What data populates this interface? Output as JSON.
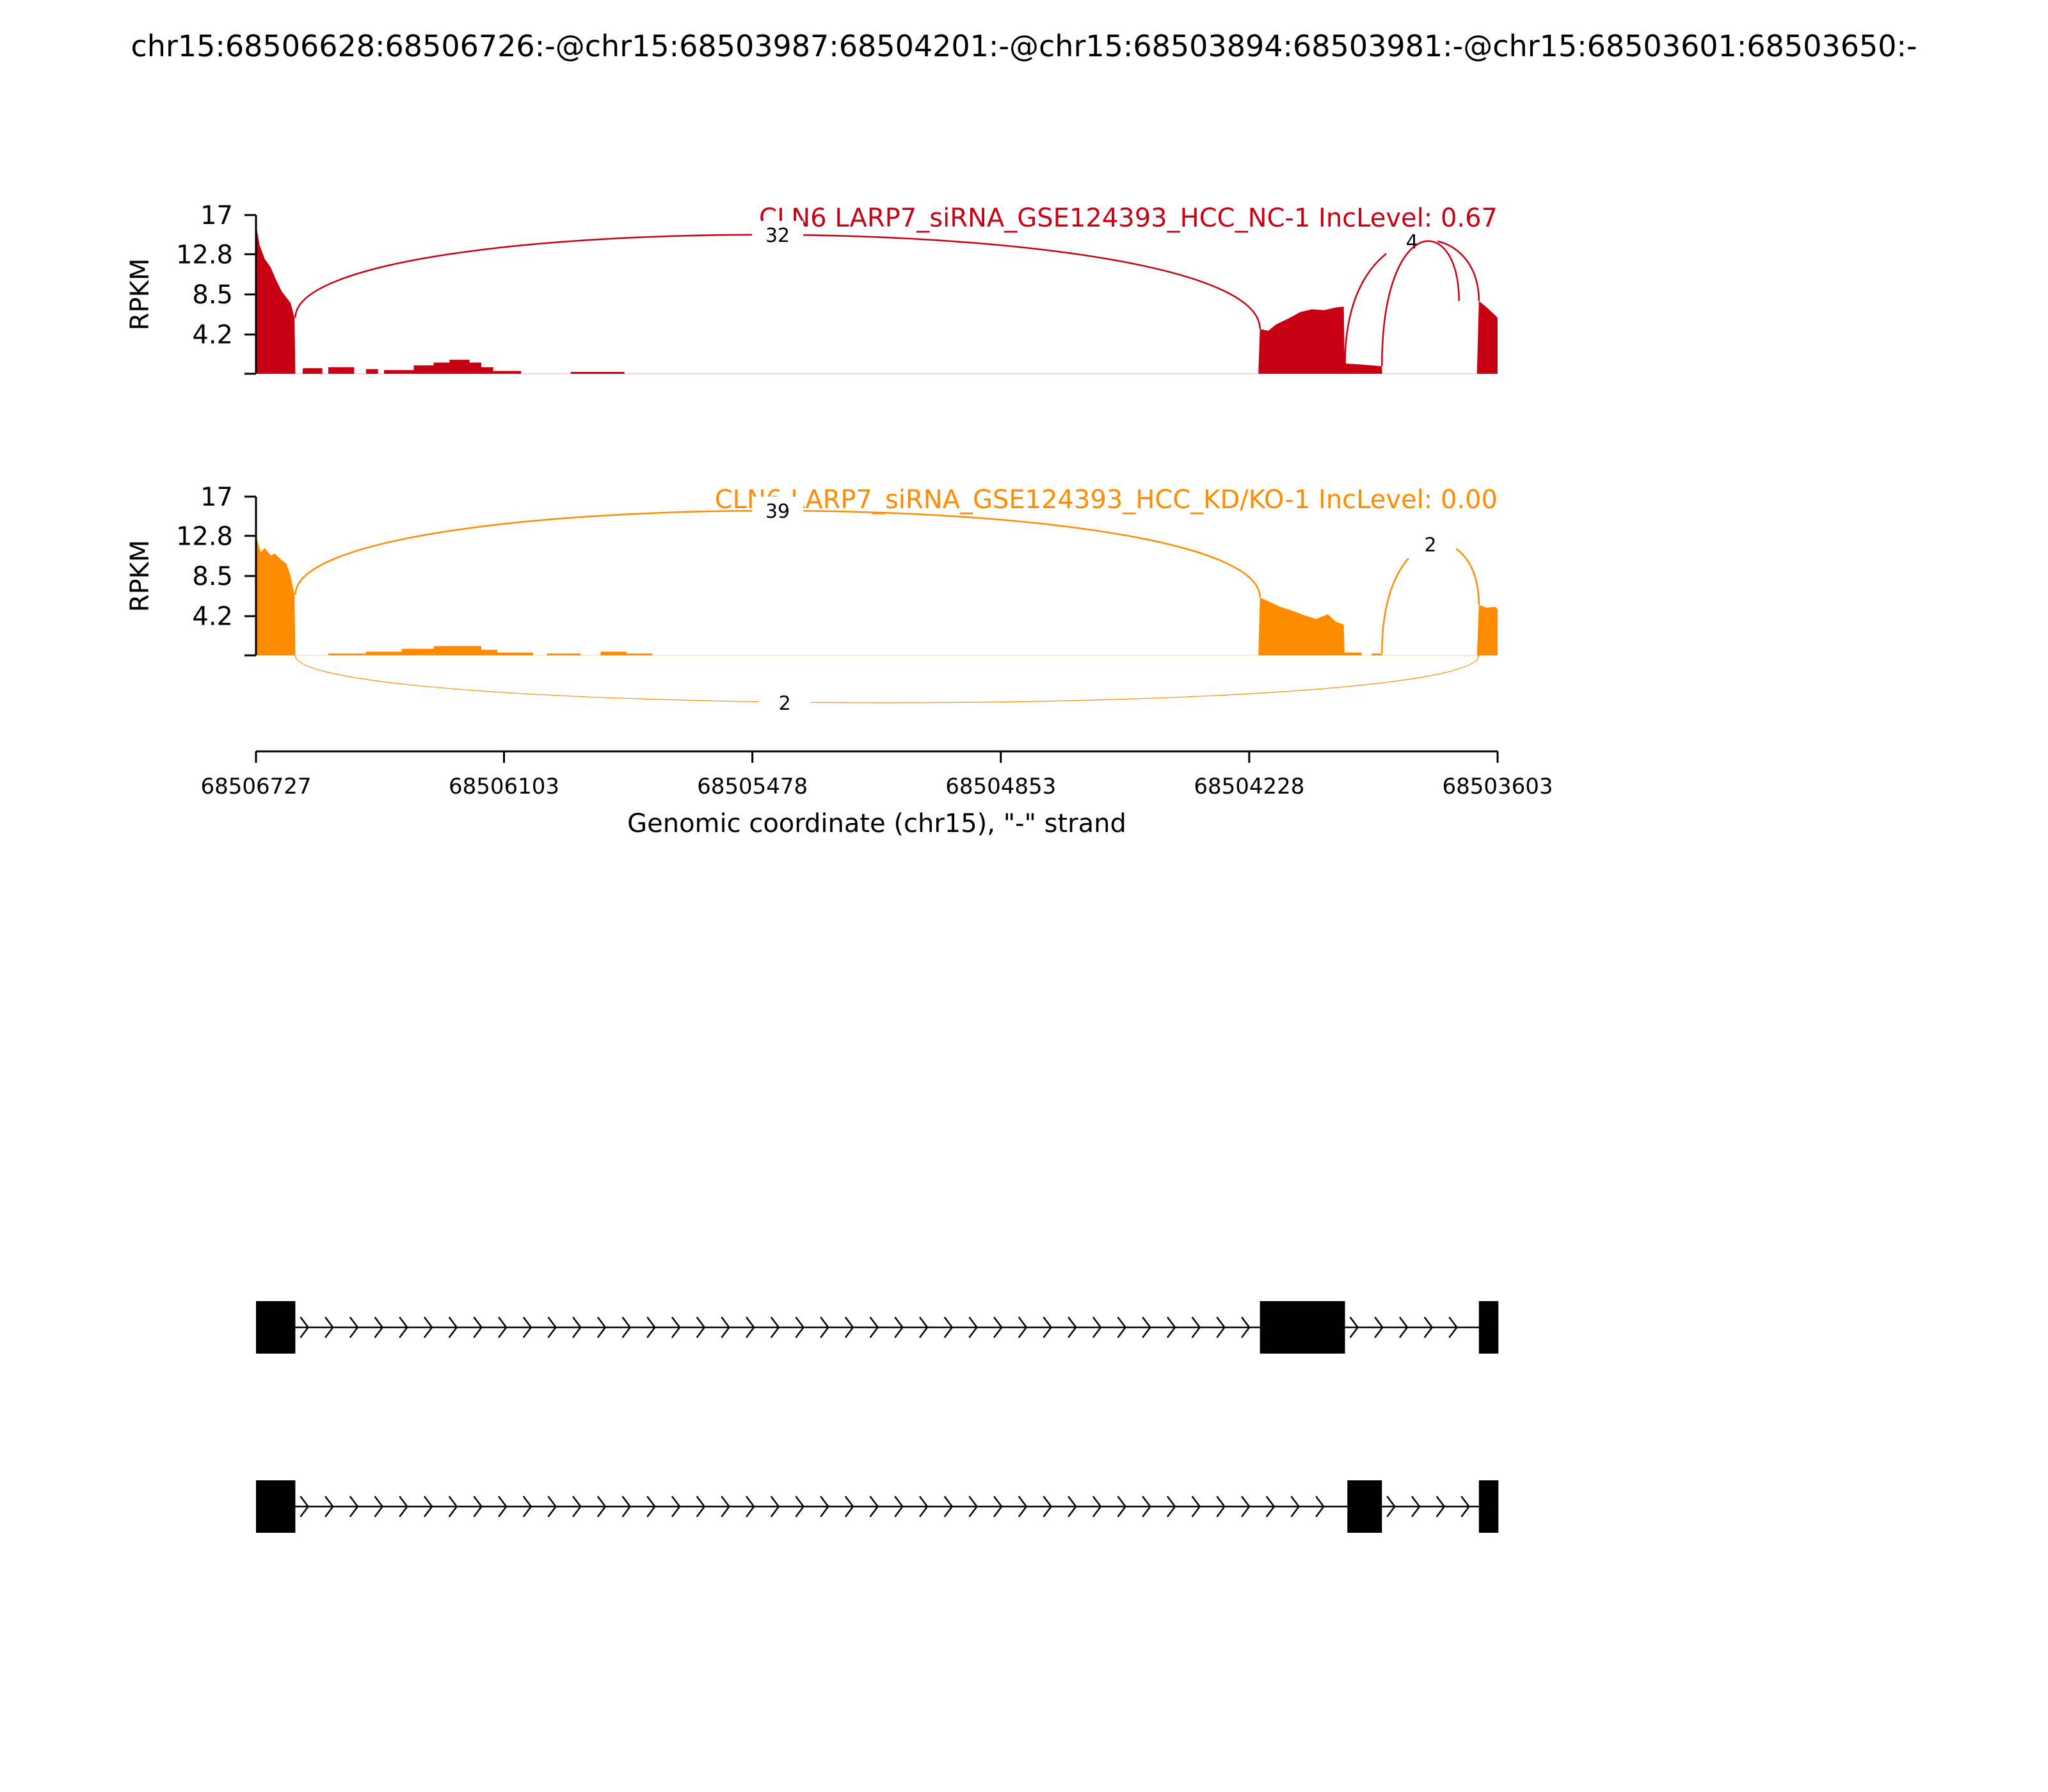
{
  "chart_data": {
    "type": "sashimi",
    "title": "chr15:68506628:68506726:-@chr15:68503987:68504201:-@chr15:68503894:68503981:-@chr15:68503601:68503650:-",
    "xlabel": "Genomic coordinate (chr15), \"-\" strand",
    "x_direction": "descending",
    "xlim": [
      68506727,
      68503603
    ],
    "xticks": [
      "68506727",
      "68506103",
      "68505478",
      "68504853",
      "68504228",
      "68503603"
    ],
    "tracks": [
      {
        "name": "CLN6 LARP7_siRNA_GSE124393_HCC_NC-1 IncLevel: 0.67",
        "color": "#c80014",
        "ylabel": "RPKM",
        "ylim": [
          0,
          17
        ],
        "yticks": [
          "17",
          "12.8",
          "8.5",
          "4.2"
        ],
        "coverage": [
          [
            68506727,
            16.0
          ],
          [
            68506718,
            13.8
          ],
          [
            68506705,
            12.3
          ],
          [
            68506690,
            11.4
          ],
          [
            68506678,
            10.2
          ],
          [
            68506662,
            8.8
          ],
          [
            68506640,
            7.6
          ],
          [
            68506630,
            6.0
          ],
          [
            68506628,
            0.0
          ],
          [
            68506610,
            0.0
          ],
          [
            68506609,
            0.6
          ],
          [
            68506560,
            0.6
          ],
          [
            68506560,
            0.0
          ],
          [
            68506545,
            0.0
          ],
          [
            68506545,
            0.7
          ],
          [
            68506480,
            0.7
          ],
          [
            68506480,
            0.0
          ],
          [
            68506450,
            0.0
          ],
          [
            68506450,
            0.5
          ],
          [
            68506420,
            0.5
          ],
          [
            68506420,
            0.0
          ],
          [
            68506405,
            0.0
          ],
          [
            68506405,
            0.4
          ],
          [
            68506330,
            0.4
          ],
          [
            68506330,
            0.9
          ],
          [
            68506280,
            0.9
          ],
          [
            68506280,
            1.2
          ],
          [
            68506240,
            1.2
          ],
          [
            68506240,
            1.5
          ],
          [
            68506190,
            1.5
          ],
          [
            68506190,
            1.2
          ],
          [
            68506160,
            1.2
          ],
          [
            68506160,
            0.7
          ],
          [
            68506130,
            0.7
          ],
          [
            68506130,
            0.3
          ],
          [
            68506060,
            0.3
          ],
          [
            68506060,
            0.0
          ],
          [
            68505935,
            0.0
          ],
          [
            68505935,
            0.2
          ],
          [
            68505800,
            0.2
          ],
          [
            68505800,
            0.0
          ],
          [
            68504205,
            0.0
          ],
          [
            68504201,
            4.8
          ],
          [
            68504180,
            4.6
          ],
          [
            68504160,
            5.3
          ],
          [
            68504130,
            5.9
          ],
          [
            68504100,
            6.6
          ],
          [
            68504070,
            6.9
          ],
          [
            68504040,
            6.8
          ],
          [
            68504010,
            7.1
          ],
          [
            68503990,
            7.2
          ],
          [
            68503988,
            1.1
          ],
          [
            68503950,
            1.0
          ],
          [
            68503920,
            0.9
          ],
          [
            68503895,
            0.8
          ],
          [
            68503893,
            0.0
          ],
          [
            68503655,
            0.0
          ],
          [
            68503650,
            7.8
          ],
          [
            68503630,
            7.1
          ],
          [
            68503610,
            6.3
          ],
          [
            68503603,
            6.0
          ]
        ],
        "junctions": [
          {
            "label": "32",
            "from": 68506628,
            "to": 68504201,
            "side": "above"
          },
          {
            "label": "4",
            "from": 68503987,
            "to": 68503650,
            "side": "above"
          },
          {
            "label": "",
            "from": 68503894,
            "to": 68503700,
            "side": "above"
          }
        ]
      },
      {
        "name": "CLN6 LARP7_siRNA_GSE124393_HCC_KD/KO-1 IncLevel: 0.00",
        "color": "#ff8c00",
        "ylabel": "RPKM",
        "ylim": [
          0,
          17
        ],
        "yticks": [
          "17",
          "12.8",
          "8.5",
          "4.2"
        ],
        "coverage": [
          [
            68506727,
            12.8
          ],
          [
            68506715,
            11.0
          ],
          [
            68506705,
            11.5
          ],
          [
            68506690,
            10.7
          ],
          [
            68506680,
            10.9
          ],
          [
            68506665,
            10.3
          ],
          [
            68506650,
            9.8
          ],
          [
            68506640,
            8.5
          ],
          [
            68506630,
            6.5
          ],
          [
            68506628,
            0.0
          ],
          [
            68506545,
            0.0
          ],
          [
            68506545,
            0.2
          ],
          [
            68506450,
            0.2
          ],
          [
            68506450,
            0.4
          ],
          [
            68506360,
            0.4
          ],
          [
            68506360,
            0.7
          ],
          [
            68506280,
            0.7
          ],
          [
            68506280,
            1.0
          ],
          [
            68506160,
            1.0
          ],
          [
            68506160,
            0.6
          ],
          [
            68506120,
            0.6
          ],
          [
            68506120,
            0.3
          ],
          [
            68506030,
            0.3
          ],
          [
            68506030,
            0.0
          ],
          [
            68505995,
            0.0
          ],
          [
            68505995,
            0.2
          ],
          [
            68505910,
            0.2
          ],
          [
            68505910,
            0.0
          ],
          [
            68505860,
            0.0
          ],
          [
            68505860,
            0.4
          ],
          [
            68505795,
            0.4
          ],
          [
            68505795,
            0.2
          ],
          [
            68505730,
            0.2
          ],
          [
            68505730,
            0.0
          ],
          [
            68504205,
            0.0
          ],
          [
            68504201,
            6.2
          ],
          [
            68504180,
            5.8
          ],
          [
            68504150,
            5.2
          ],
          [
            68504120,
            4.8
          ],
          [
            68504090,
            4.3
          ],
          [
            68504060,
            3.9
          ],
          [
            68504030,
            4.4
          ],
          [
            68504010,
            3.6
          ],
          [
            68503990,
            3.3
          ],
          [
            68503988,
            0.3
          ],
          [
            68503945,
            0.3
          ],
          [
            68503945,
            0.0
          ],
          [
            68503920,
            0.0
          ],
          [
            68503920,
            0.2
          ],
          [
            68503895,
            0.2
          ],
          [
            68503893,
            0.0
          ],
          [
            68503655,
            0.0
          ],
          [
            68503650,
            5.4
          ],
          [
            68503630,
            5.1
          ],
          [
            68503610,
            5.2
          ],
          [
            68503603,
            5.0
          ]
        ],
        "junctions": [
          {
            "label": "39",
            "from": 68506628,
            "to": 68504201,
            "side": "above"
          },
          {
            "label": "2",
            "from": 68503894,
            "to": 68503650,
            "side": "above"
          },
          {
            "label": "2",
            "from": 68506628,
            "to": 68503650,
            "side": "below"
          }
        ]
      }
    ],
    "transcripts": [
      {
        "strand": "-",
        "exons": [
          [
            68506727,
            68506628
          ],
          [
            68504201,
            68503987
          ],
          [
            68503650,
            68503601
          ]
        ]
      },
      {
        "strand": "-",
        "exons": [
          [
            68506727,
            68506628
          ],
          [
            68503981,
            68503894
          ],
          [
            68503650,
            68503601
          ]
        ]
      }
    ]
  }
}
